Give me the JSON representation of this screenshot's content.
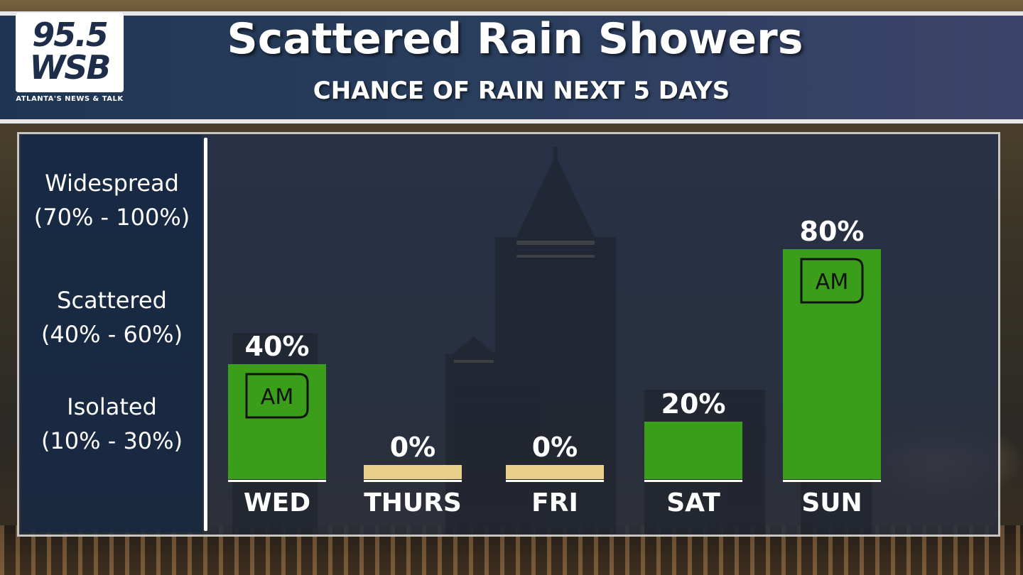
{
  "logo": {
    "number": "95.5",
    "call": "WSB",
    "tagline": "ATLANTA'S NEWS & TALK"
  },
  "header": {
    "title": "Scattered Rain Showers",
    "subtitle": "CHANCE OF RAIN NEXT 5 DAYS"
  },
  "legend": [
    {
      "label": "Widespread",
      "range": "(70% - 100%)"
    },
    {
      "label": "Scattered",
      "range": "(40% - 60%)"
    },
    {
      "label": "Isolated",
      "range": "(10% - 30%)"
    }
  ],
  "colors": {
    "rain_bar": "#3a9e1a",
    "zero_bar": "#e8d08a",
    "header_bg": "#243a58"
  },
  "chart_data": {
    "type": "bar",
    "title": "Scattered Rain Showers",
    "subtitle": "CHANCE OF RAIN NEXT 5 DAYS",
    "categories": [
      "WED",
      "THURS",
      "FRI",
      "SAT",
      "SUN"
    ],
    "values": [
      40,
      0,
      0,
      20,
      80
    ],
    "value_labels": [
      "40%",
      "0%",
      "0%",
      "20%",
      "80%"
    ],
    "badges": [
      "AM",
      "",
      "",
      "",
      "AM"
    ],
    "unit": "%",
    "ylim": [
      0,
      100
    ],
    "grid": false,
    "legend": "left"
  }
}
